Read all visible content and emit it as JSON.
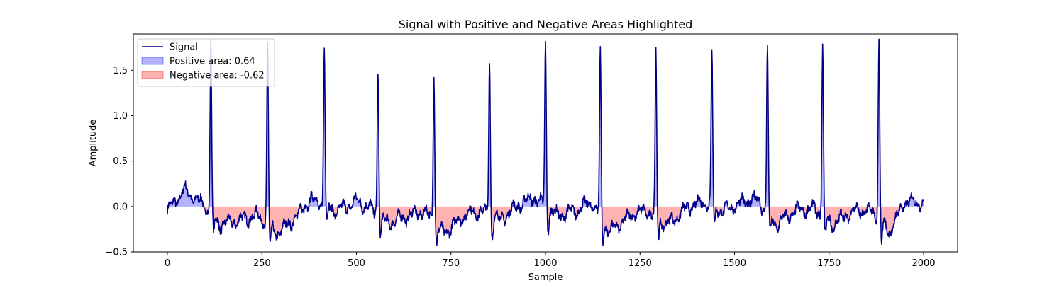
{
  "chart_data": {
    "type": "line",
    "title": "Signal with Positive and Negative Areas Highlighted",
    "xlabel": "Sample",
    "ylabel": "Amplitude",
    "xlim": [
      -90,
      2090
    ],
    "ylim": [
      -0.5,
      1.9
    ],
    "xticks": [
      0,
      250,
      500,
      750,
      1000,
      1250,
      1500,
      1750,
      2000
    ],
    "yticks": [
      -0.5,
      0.0,
      0.5,
      1.0,
      1.5
    ],
    "ytick_labels": [
      "−0.5",
      "0.0",
      "0.5",
      "1.0",
      "1.5"
    ],
    "grid": false,
    "legend_position": "top-left",
    "colors": {
      "line": "#00008b",
      "positive_fill": "#0000ff",
      "negative_fill": "#ff0000",
      "fill_opacity": 0.3
    },
    "legend": [
      {
        "label": "Signal",
        "kind": "line"
      },
      {
        "label": "Positive area: 0.64",
        "kind": "positive"
      },
      {
        "label": "Negative area: -0.62",
        "kind": "negative"
      }
    ],
    "series": [
      {
        "name": "Signal",
        "peaks": [
          {
            "x": 115,
            "y": 1.8
          },
          {
            "x": 265,
            "y": 1.78
          },
          {
            "x": 415,
            "y": 1.78
          },
          {
            "x": 557,
            "y": 1.54
          },
          {
            "x": 705,
            "y": 1.53
          },
          {
            "x": 852,
            "y": 1.65
          },
          {
            "x": 1000,
            "y": 1.79
          },
          {
            "x": 1145,
            "y": 1.71
          },
          {
            "x": 1292,
            "y": 1.68
          },
          {
            "x": 1440,
            "y": 1.73
          },
          {
            "x": 1587,
            "y": 1.8
          },
          {
            "x": 1733,
            "y": 1.79
          },
          {
            "x": 1882,
            "y": 1.86
          }
        ],
        "baseline_points": [
          {
            "x": 0,
            "y": -0.05
          },
          {
            "x": 20,
            "y": 0.05
          },
          {
            "x": 45,
            "y": 0.18
          },
          {
            "x": 70,
            "y": 0.1
          },
          {
            "x": 95,
            "y": 0.02
          },
          {
            "x": 140,
            "y": -0.2
          },
          {
            "x": 190,
            "y": -0.15
          },
          {
            "x": 240,
            "y": -0.1
          },
          {
            "x": 290,
            "y": -0.3
          },
          {
            "x": 340,
            "y": -0.12
          },
          {
            "x": 380,
            "y": 0.08
          },
          {
            "x": 450,
            "y": -0.05
          },
          {
            "x": 500,
            "y": 0.06
          },
          {
            "x": 530,
            "y": 0.0
          },
          {
            "x": 580,
            "y": -0.18
          },
          {
            "x": 640,
            "y": -0.1
          },
          {
            "x": 680,
            "y": -0.05
          },
          {
            "x": 730,
            "y": -0.3
          },
          {
            "x": 790,
            "y": -0.08
          },
          {
            "x": 830,
            "y": -0.05
          },
          {
            "x": 880,
            "y": -0.15
          },
          {
            "x": 930,
            "y": 0.02
          },
          {
            "x": 970,
            "y": 0.1
          },
          {
            "x": 1030,
            "y": -0.1
          },
          {
            "x": 1080,
            "y": -0.05
          },
          {
            "x": 1120,
            "y": 0.05
          },
          {
            "x": 1170,
            "y": -0.28
          },
          {
            "x": 1230,
            "y": -0.08
          },
          {
            "x": 1270,
            "y": -0.05
          },
          {
            "x": 1320,
            "y": -0.2
          },
          {
            "x": 1380,
            "y": 0.0
          },
          {
            "x": 1420,
            "y": 0.05
          },
          {
            "x": 1470,
            "y": -0.05
          },
          {
            "x": 1520,
            "y": 0.05
          },
          {
            "x": 1560,
            "y": 0.08
          },
          {
            "x": 1610,
            "y": -0.2
          },
          {
            "x": 1660,
            "y": -0.05
          },
          {
            "x": 1710,
            "y": -0.02
          },
          {
            "x": 1760,
            "y": -0.2
          },
          {
            "x": 1810,
            "y": -0.05
          },
          {
            "x": 1860,
            "y": -0.05
          },
          {
            "x": 1910,
            "y": -0.28
          },
          {
            "x": 1950,
            "y": 0.05
          },
          {
            "x": 2000,
            "y": 0.05
          }
        ]
      }
    ]
  }
}
